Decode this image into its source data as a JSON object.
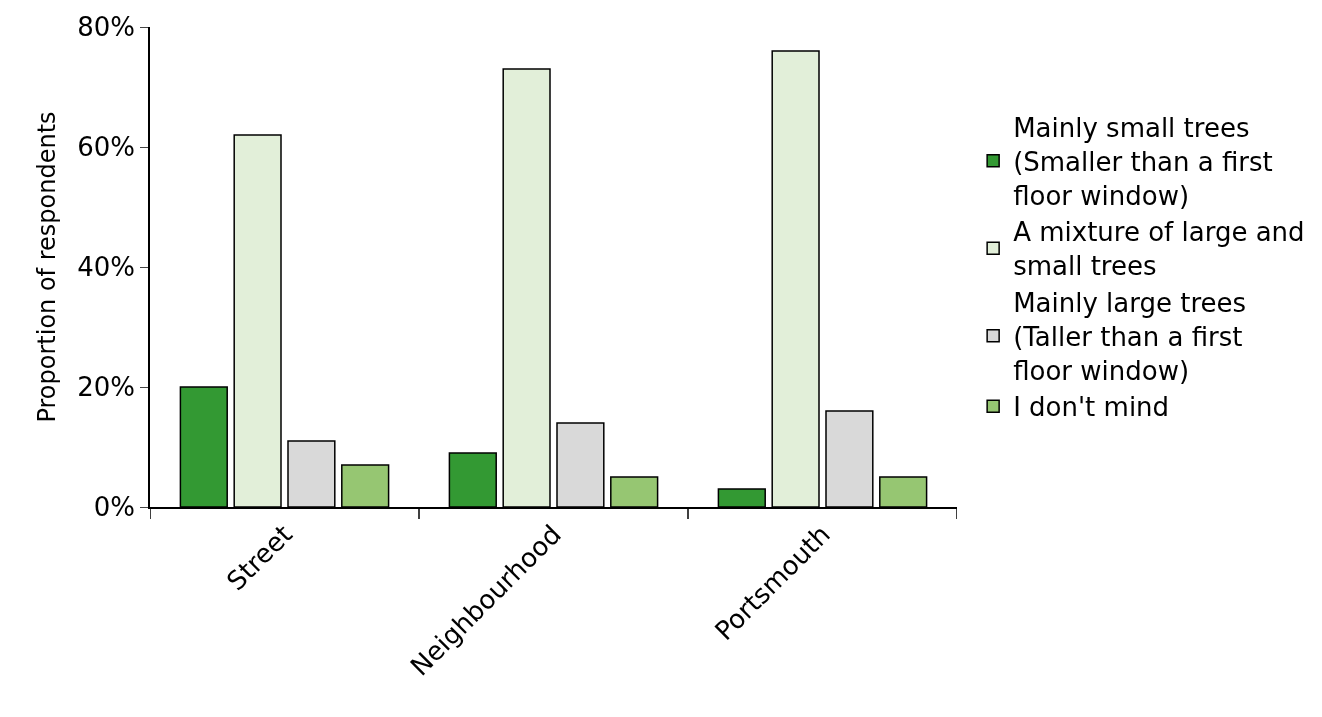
{
  "chart_data": {
    "type": "bar",
    "ylabel": "Proportion of respondents",
    "categories": [
      "Street",
      "Neighbourhood",
      "Portsmouth"
    ],
    "series": [
      {
        "name": "Mainly small trees (Smaller than a first floor window)",
        "color": "#339933",
        "values": [
          20,
          9,
          3
        ]
      },
      {
        "name": "A mixture of large and small trees",
        "color": "#e2efd9",
        "values": [
          62,
          73,
          76
        ]
      },
      {
        "name": "Mainly large trees (Taller than a first floor window)",
        "color": "#d9d9d9",
        "values": [
          11,
          14,
          16
        ]
      },
      {
        "name": "I don't mind",
        "color": "#96c672",
        "values": [
          7,
          5,
          5
        ]
      }
    ],
    "ylim": [
      0,
      80
    ],
    "yticks": [
      {
        "value": 0,
        "label": "0%"
      },
      {
        "value": 20,
        "label": "20%"
      },
      {
        "value": 40,
        "label": "40%"
      },
      {
        "value": 60,
        "label": "60%"
      },
      {
        "value": 80,
        "label": "80%"
      }
    ],
    "legend": "right"
  }
}
